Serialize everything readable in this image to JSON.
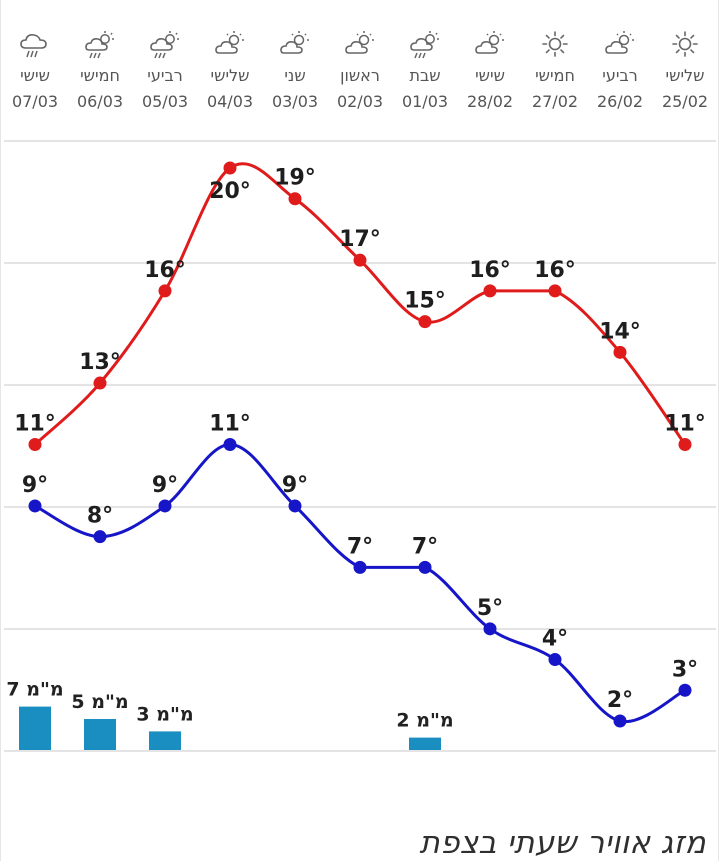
{
  "page": {
    "title": "מזג אוויר שעתי בצפת"
  },
  "days": [
    {
      "name": "שלישי",
      "date": "25/02",
      "icon": "sun-icon"
    },
    {
      "name": "רביעי",
      "date": "26/02",
      "icon": "partly-cloudy-icon"
    },
    {
      "name": "חמישי",
      "date": "27/02",
      "icon": "sun-icon"
    },
    {
      "name": "שישי",
      "date": "28/02",
      "icon": "partly-cloudy-icon"
    },
    {
      "name": "שבת",
      "date": "01/03",
      "icon": "rain-sun-icon"
    },
    {
      "name": "ראשון",
      "date": "02/03",
      "icon": "partly-cloudy-icon"
    },
    {
      "name": "שני",
      "date": "03/03",
      "icon": "partly-cloudy-icon"
    },
    {
      "name": "שלישי",
      "date": "04/03",
      "icon": "partly-cloudy-icon"
    },
    {
      "name": "רביעי",
      "date": "05/03",
      "icon": "rain-sun-icon"
    },
    {
      "name": "חמישי",
      "date": "06/03",
      "icon": "rain-sun-icon"
    },
    {
      "name": "שישי",
      "date": "07/03",
      "icon": "rain-icon"
    }
  ],
  "chart_data": {
    "type": "line",
    "categories": [
      "25/02",
      "26/02",
      "27/02",
      "28/02",
      "01/03",
      "02/03",
      "03/03",
      "04/03",
      "05/03",
      "06/03",
      "07/03"
    ],
    "series": [
      {
        "id": "max",
        "color": "#e01b1b",
        "values": [
          11,
          14,
          16,
          16,
          15,
          17,
          19,
          20,
          16,
          13,
          11
        ],
        "labels": [
          "11°",
          "14°",
          "16°",
          "16°",
          "15°",
          "17°",
          "19°",
          "20°",
          "16°",
          "13°",
          "11°"
        ]
      },
      {
        "id": "min",
        "color": "#1616c8",
        "values": [
          3,
          2,
          4,
          5,
          7,
          7,
          9,
          11,
          9,
          8,
          9
        ],
        "labels": [
          "3°",
          "2°",
          "4°",
          "5°",
          "7°",
          "7°",
          "9°",
          "11°",
          "9°",
          "8°",
          "9°"
        ]
      }
    ],
    "precipitation": {
      "color": "#1a8dc1",
      "values": [
        0,
        0,
        0,
        0,
        2,
        0,
        0,
        0,
        3,
        5,
        7
      ],
      "labels": [
        "",
        "",
        "",
        "",
        "2 מ\"מ",
        "",
        "",
        "",
        "3 מ\"מ",
        "5 מ\"מ",
        "7 מ\"מ"
      ]
    },
    "grid": true,
    "xlabel": "",
    "ylabel": ""
  }
}
